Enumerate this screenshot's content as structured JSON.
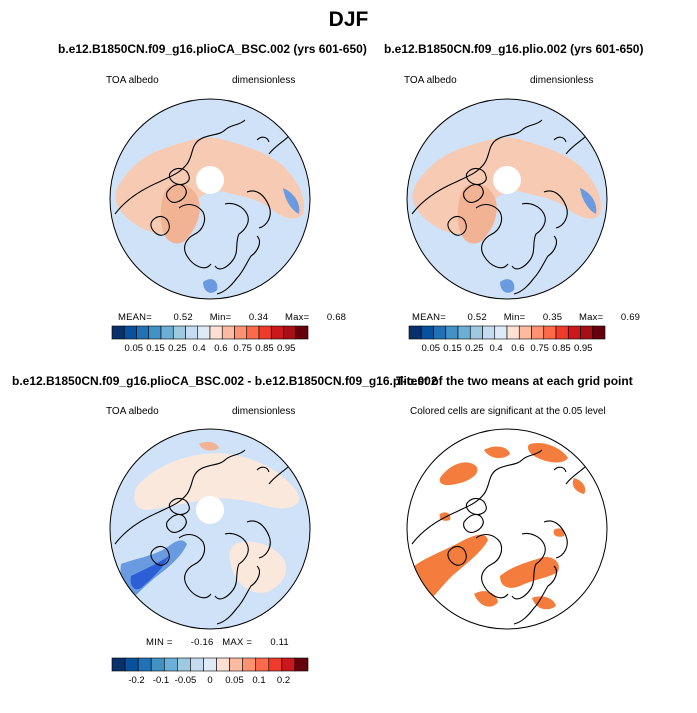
{
  "figure": {
    "title": "DJF"
  },
  "chart_data": [
    {
      "type": "heatmap",
      "panel_title": "b.e12.B1850CN.f09_g16.plioCA_BSC.002 (yrs 601-650)",
      "variable": "TOA albedo",
      "units": "dimensionless",
      "stats": {
        "mean_label": "MEAN=",
        "mean": "0.52",
        "min_label": "Min=",
        "min": "0.34",
        "max_label": "Max=",
        "max": "0.68"
      },
      "colorbar": {
        "ticks": [
          "0.05",
          "0.15",
          "0.25",
          "0.4",
          "0.6",
          "0.75",
          "0.85",
          "0.95"
        ],
        "colors": [
          "#08306b",
          "#08519c",
          "#2171b5",
          "#4292c6",
          "#6baed6",
          "#9ecae1",
          "#c6dbef",
          "#deebf7",
          "#fee0d2",
          "#fcbba1",
          "#fc9272",
          "#fb6a4a",
          "#ef3b2c",
          "#cb181d",
          "#a50f15",
          "#67000d"
        ]
      }
    },
    {
      "type": "heatmap",
      "panel_title": "b.e12.B1850CN.f09_g16.plio.002 (yrs 601-650)",
      "variable": "TOA albedo",
      "units": "dimensionless",
      "stats": {
        "mean_label": "MEAN=",
        "mean": "0.52",
        "min_label": "Min=",
        "min": "0.35",
        "max_label": "Max=",
        "max": "0.69"
      },
      "colorbar": {
        "ticks": [
          "0.05",
          "0.15",
          "0.25",
          "0.4",
          "0.6",
          "0.75",
          "0.85",
          "0.95"
        ],
        "colors": [
          "#08306b",
          "#08519c",
          "#2171b5",
          "#4292c6",
          "#6baed6",
          "#9ecae1",
          "#c6dbef",
          "#deebf7",
          "#fee0d2",
          "#fcbba1",
          "#fc9272",
          "#fb6a4a",
          "#ef3b2c",
          "#cb181d",
          "#a50f15",
          "#67000d"
        ]
      }
    },
    {
      "type": "heatmap",
      "panel_title": "b.e12.B1850CN.f09_g16.plioCA_BSC.002 - b.e12.B1850CN.f09_g16.plio.002",
      "variable": "TOA albedo",
      "units": "dimensionless",
      "stats": {
        "min_label": "MIN =",
        "min": "-0.16",
        "max_label": "MAX =",
        "max": "0.11"
      },
      "colorbar": {
        "ticks": [
          "-0.2",
          "-0.1",
          "-0.05",
          "0",
          "0.05",
          "0.1",
          "0.2"
        ],
        "colors": [
          "#08306b",
          "#08519c",
          "#2171b5",
          "#4292c6",
          "#6baed6",
          "#9ecae1",
          "#c6dbef",
          "#deebf7",
          "#fee0d2",
          "#fcbba1",
          "#fc9272",
          "#fb6a4a",
          "#ef3b2c",
          "#cb181d",
          "#67000d"
        ]
      }
    },
    {
      "type": "heatmap",
      "panel_title": "T-test of the two means at each grid point",
      "note": "Colored cells are significant at the 0.05 level",
      "significance_level": 0.05,
      "colors": {
        "significant": "#f47c3c"
      }
    }
  ],
  "map_colors": {
    "background": "#cfe2f7",
    "salmon": "#f7cbb3",
    "salmon_dark": "#f2b394",
    "blue_dark": "#6a9be0",
    "blue_deep": "#2c5fd6",
    "cream": "#fbe8dc",
    "white": "#ffffff",
    "coast": "#000000"
  }
}
